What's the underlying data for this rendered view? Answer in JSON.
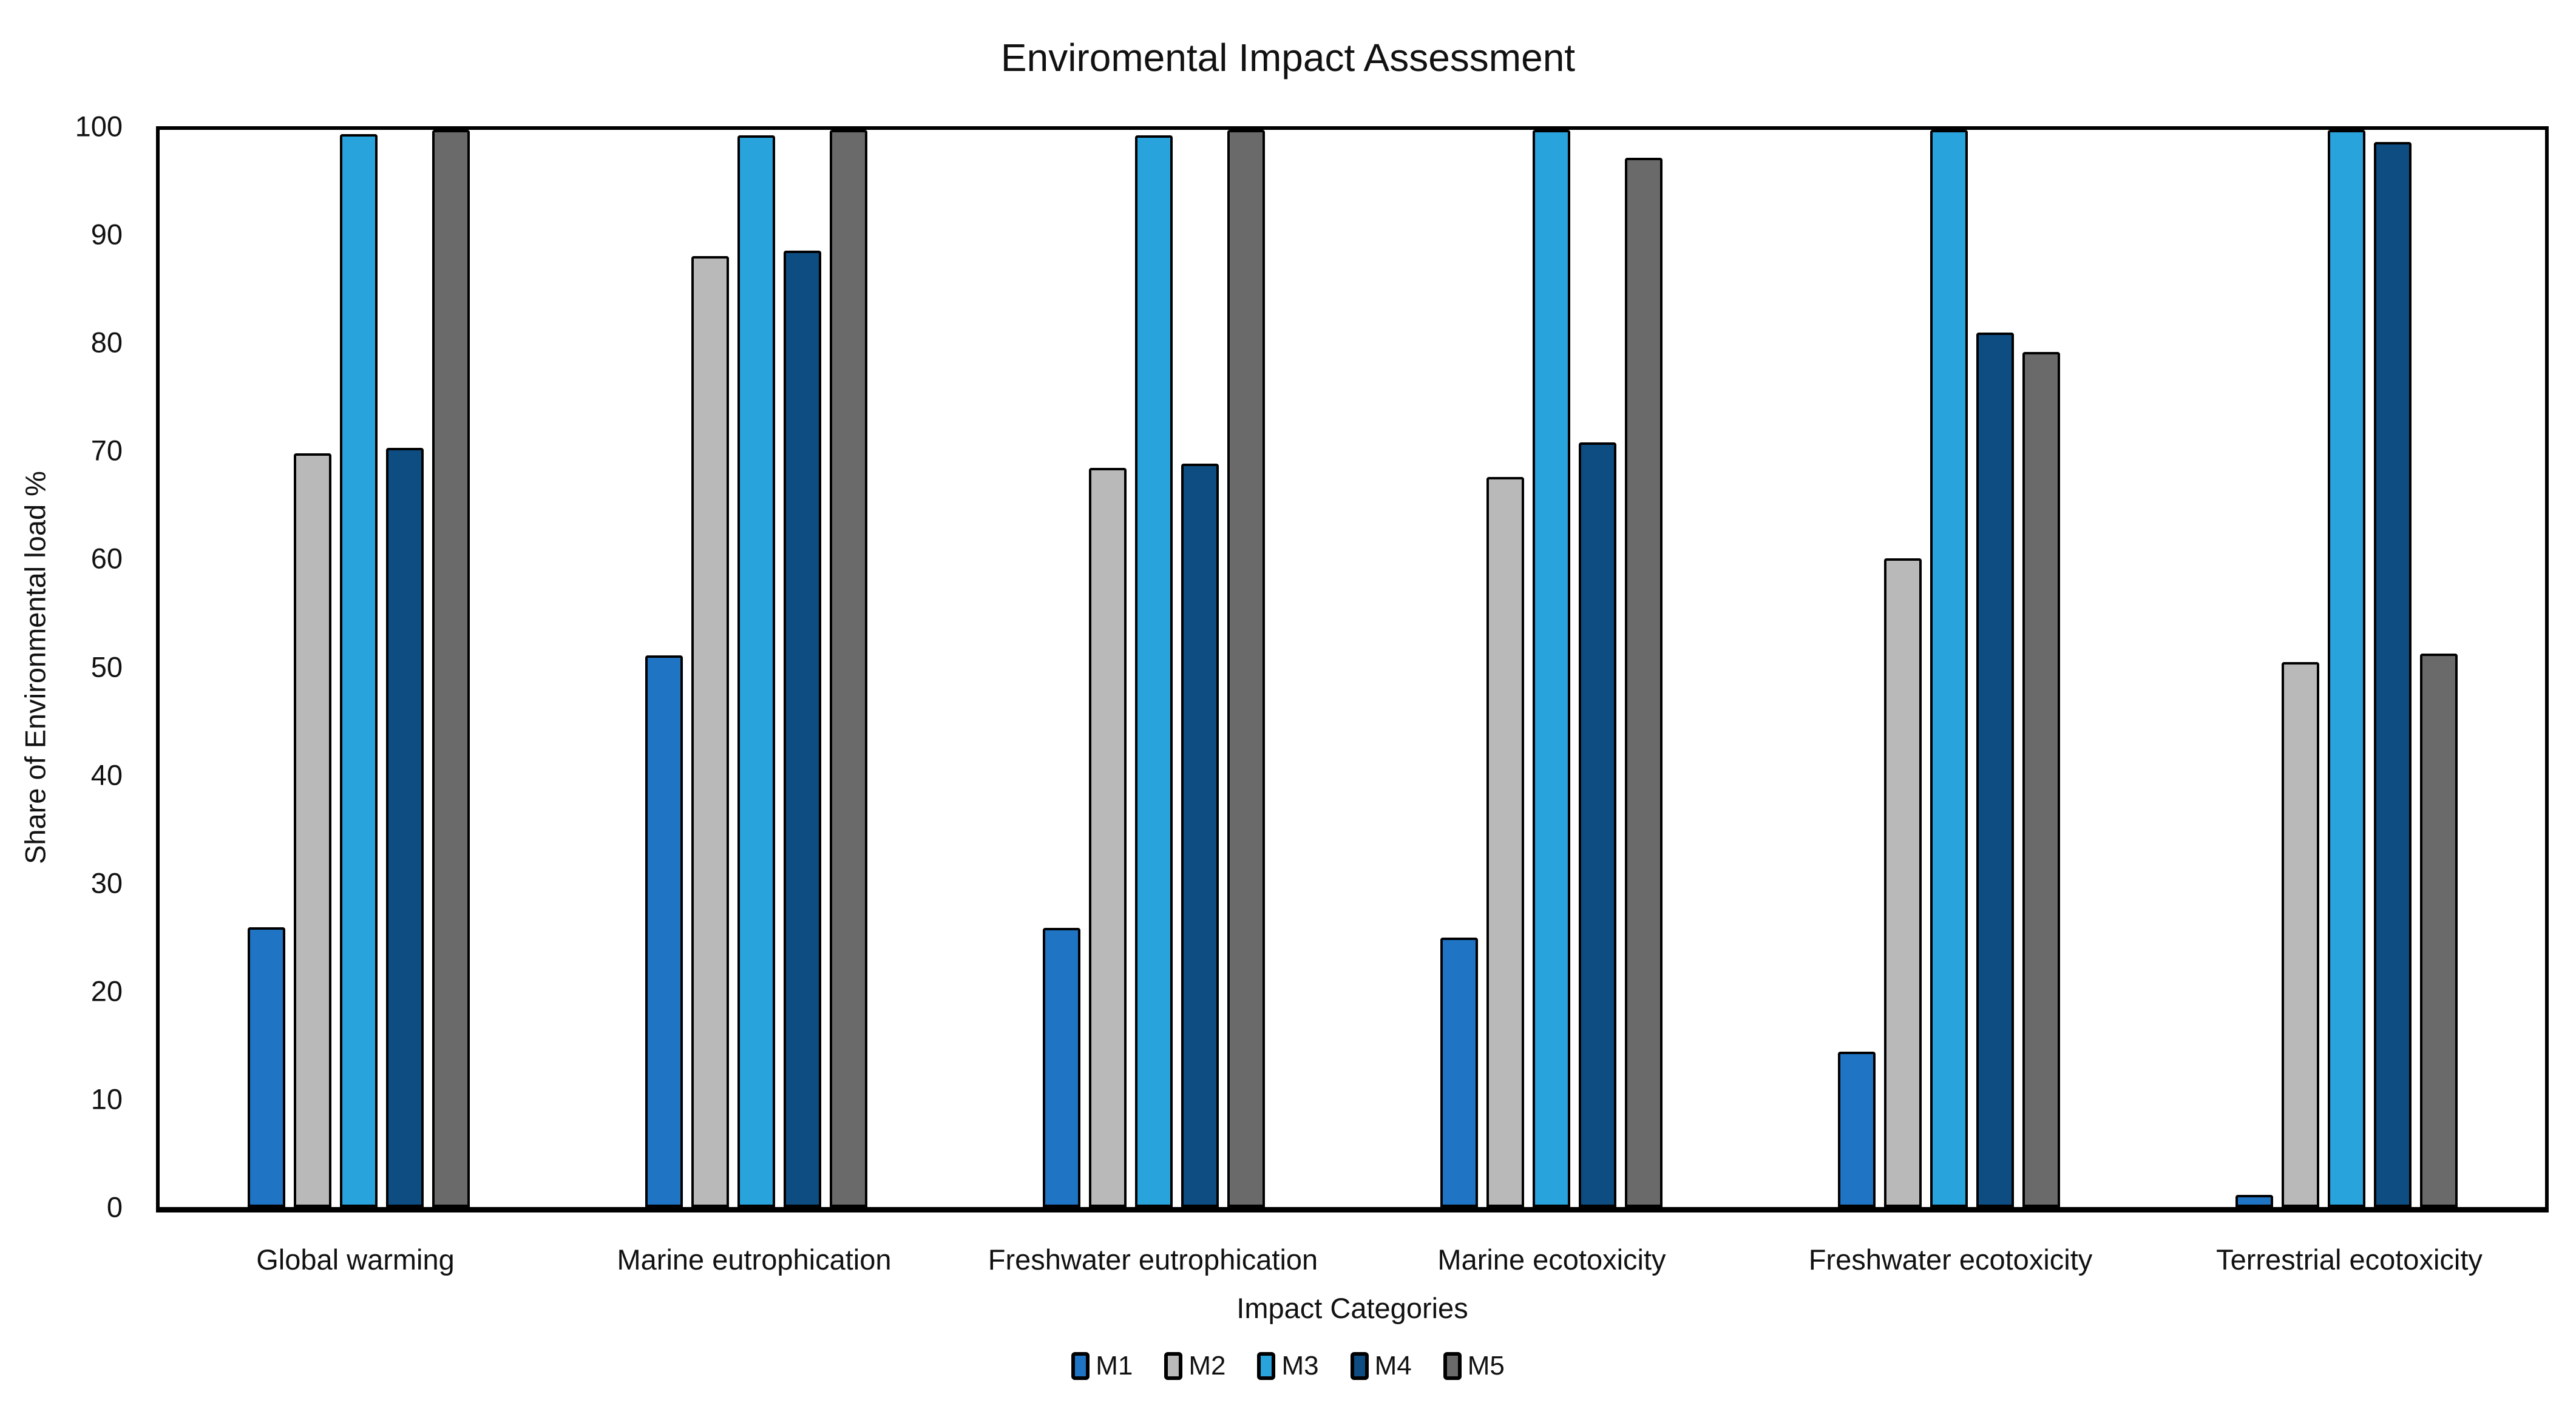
{
  "title": "Enviromental Impact Assessment",
  "colors": {
    "M1": "#2074C4",
    "M2": "#B9B9B9",
    "M3": "#29A3DC",
    "M4": "#0D4D82",
    "M5": "#6A6A6A",
    "bar_border": "#000000",
    "plot_border": "#000000",
    "text": "#111111"
  },
  "chart_data": {
    "type": "bar",
    "title": "Enviromental Impact Assessment",
    "xlabel": "Impact Categories",
    "ylabel": "Share of Environmental load %",
    "ylim": [
      0,
      100
    ],
    "yticks": [
      0,
      10,
      20,
      30,
      40,
      50,
      60,
      70,
      80,
      90,
      100
    ],
    "grid": false,
    "legend_position": "bottom",
    "categories": [
      "Global warming",
      "Marine eutrophication",
      "Freshwater eutrophication",
      "Marine ecotoxicity",
      "Freshwater ecotoxicity",
      "Terrestrial ecotoxicity"
    ],
    "series": [
      {
        "name": "M1",
        "color": "#2074C4",
        "values": [
          26.0,
          51.2,
          25.9,
          25.0,
          14.4,
          1.1
        ]
      },
      {
        "name": "M2",
        "color": "#B9B9B9",
        "values": [
          70.0,
          88.3,
          68.6,
          67.8,
          60.2,
          50.6
        ]
      },
      {
        "name": "M3",
        "color": "#29A3DC",
        "values": [
          99.6,
          99.5,
          99.5,
          100.0,
          100.0,
          100.0
        ]
      },
      {
        "name": "M4",
        "color": "#0D4D82",
        "values": [
          70.5,
          88.8,
          69.0,
          71.0,
          81.2,
          98.9
        ]
      },
      {
        "name": "M5",
        "color": "#6A6A6A",
        "values": [
          100.0,
          100.0,
          100.0,
          97.4,
          79.4,
          51.4
        ]
      }
    ]
  }
}
